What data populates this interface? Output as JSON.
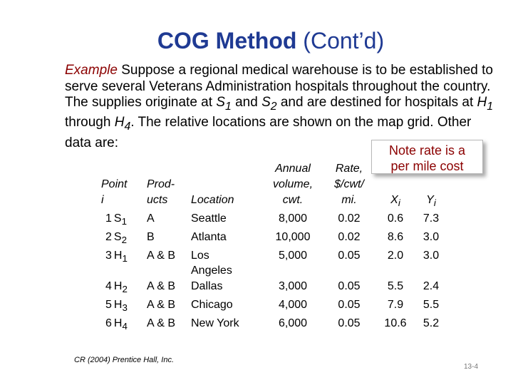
{
  "title": {
    "bold": "COG Method",
    "rest": " (Cont’d)"
  },
  "intro": {
    "label": "Example",
    "t1": "  Suppose a regional medical warehouse is to be established to serve several Veterans Administration hospitals throughout the country.  The supplies originate at ",
    "s1": "S",
    "s1_sub": "1",
    "t2": " and ",
    "s2": "S",
    "s2_sub": "2",
    "t3": " and are destined for hospitals at ",
    "h1": "H",
    "h1_sub": "1",
    "t4": " through ",
    "h4": "H",
    "h4_sub": "4",
    "t5": ".  The relative locations are shown on the map grid.  Other data are:"
  },
  "note": {
    "line1": "Note rate is a",
    "line2": "per mile cost"
  },
  "table": {
    "headers": {
      "point_1": "Point",
      "point_2": "i",
      "prod_1": "Prod-",
      "prod_2": "ucts",
      "location": "Location",
      "volume_1": "Annual",
      "volume_2": "volume,",
      "volume_3": "cwt.",
      "rate_1": "Rate,",
      "rate_2": "$/cwt/",
      "rate_3": "mi.",
      "x": "X",
      "x_sub": "i",
      "y": "Y",
      "y_sub": "i"
    },
    "rows": [
      {
        "num": "1",
        "sym": "S",
        "sub": "1",
        "products": "A",
        "location": "Seattle",
        "volume": "8,000",
        "rate": "0.02",
        "x": "0.6",
        "y": "7.3"
      },
      {
        "num": "2",
        "sym": "S",
        "sub": "2",
        "products": "B",
        "location": "Atlanta",
        "volume": "10,000",
        "rate": "0.02",
        "x": "8.6",
        "y": "3.0"
      },
      {
        "num": "3",
        "sym": "H",
        "sub": "1",
        "products": "A & B",
        "location": "Los",
        "location_2": "Angeles",
        "volume": "5,000",
        "rate": "0.05",
        "x": "2.0",
        "y": "3.0"
      },
      {
        "num": "4",
        "sym": "H",
        "sub": "2",
        "products": "A & B",
        "location": "Dallas",
        "volume": "3,000",
        "rate": "0.05",
        "x": "5.5",
        "y": "2.4"
      },
      {
        "num": "5",
        "sym": "H",
        "sub": "3",
        "products": "A & B",
        "location": "Chicago",
        "volume": "4,000",
        "rate": "0.05",
        "x": "7.9",
        "y": "5.5"
      },
      {
        "num": "6",
        "sym": "H",
        "sub": "4",
        "products": "A & B",
        "location": "New York",
        "volume": "6,000",
        "rate": "0.05",
        "x": "10.6",
        "y": "5.2"
      }
    ]
  },
  "footer": "CR (2004) Prentice Hall, Inc.",
  "page_number": "13-4"
}
